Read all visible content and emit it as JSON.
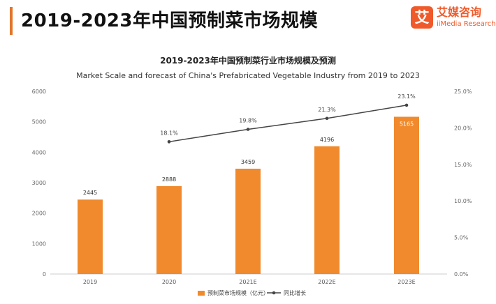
{
  "header": {
    "title": "2019-2023年中国预制菜市场规模",
    "logo_mark": "艾",
    "logo_cn": "艾媒咨询",
    "logo_en": "iiMedia Research"
  },
  "chart_data": {
    "type": "bar",
    "title": "2019-2023年中国预制菜行业市场规模及预测",
    "subtitle": "Market Scale and forecast of China's Prefabricated Vegetable Industry from 2019 to 2023",
    "categories": [
      "2019",
      "2020",
      "2021E",
      "2022E",
      "2023E"
    ],
    "series": [
      {
        "name": "预制菜市场规模（亿元）",
        "type": "bar",
        "axis": "left",
        "values": [
          2445,
          2888,
          3459,
          4196,
          5165
        ],
        "labels": [
          "2445",
          "2888",
          "3459",
          "4196",
          "5165"
        ],
        "color": "#f08a2c"
      },
      {
        "name": "同比增长",
        "type": "line",
        "axis": "right",
        "values": [
          null,
          18.1,
          19.8,
          21.3,
          23.1
        ],
        "labels": [
          "",
          "18.1%",
          "19.8%",
          "21.3%",
          "23.1%"
        ],
        "color": "#444444"
      }
    ],
    "y_left": {
      "min": 0,
      "max": 6000,
      "ticks": [
        "0",
        "1000",
        "2000",
        "3000",
        "4000",
        "5000",
        "6000"
      ]
    },
    "y_right": {
      "min": 0,
      "max": 25,
      "ticks": [
        "0.0%",
        "5.0%",
        "10.0%",
        "15.0%",
        "20.0%",
        "25.0%"
      ]
    },
    "grid": false,
    "legend": "bottom-center"
  }
}
